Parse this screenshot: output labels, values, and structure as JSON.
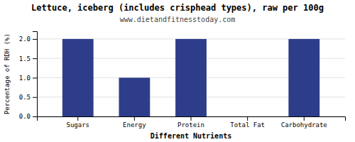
{
  "chart_data": {
    "type": "bar",
    "title": "Lettuce, iceberg (includes crisphead types), raw per 100g",
    "subtitle": "www.dietandfitnesstoday.com",
    "xlabel": "Different Nutrients",
    "ylabel": "Percentage of RDH (%)",
    "categories": [
      "Sugars",
      "Energy",
      "Protein",
      "Total Fat",
      "Carbohydrate"
    ],
    "values": [
      2.0,
      1.0,
      2.0,
      0.0,
      2.0
    ],
    "color": "#2e3d8a",
    "ylim": [
      0,
      2.2
    ],
    "yticks": [
      {
        "value": 0,
        "label": "0.0"
      },
      0.5,
      {
        "value": 1,
        "label": "1.0"
      },
      1.5,
      {
        "value": 2,
        "label": "2.0"
      }
    ],
    "grid": true
  }
}
